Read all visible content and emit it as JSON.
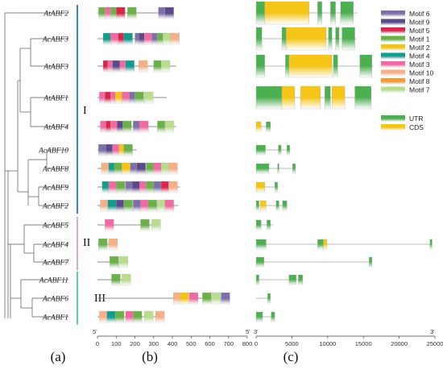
{
  "genes": [
    "AtABF2",
    "AcABF3",
    "AtABF3",
    "AtABF1",
    "AtABF4",
    "AcABF10",
    "AcABF8",
    "AcABF9",
    "AcABF2",
    "AcABF5",
    "AcABF4",
    "AcABF7",
    "AcABF11",
    "AcABF6",
    "AcABF1"
  ],
  "clades": [
    {
      "label": "I",
      "color": "#2f86c8",
      "from": 0,
      "to": 8
    },
    {
      "label": "II",
      "color": "#d9a6e3",
      "from": 9,
      "to": 11
    },
    {
      "label": "III",
      "color": "#5fcfa8",
      "from": 12,
      "to": 14
    }
  ],
  "panels": [
    "(a)",
    "(b)",
    "(c)"
  ],
  "motif_axis": {
    "min": 0,
    "max": 800,
    "ticks": [
      0,
      100,
      200,
      300,
      400,
      500,
      600,
      700,
      800
    ],
    "start_label": "5'",
    "end_label": "5'"
  },
  "gene_axis": {
    "min": 0,
    "max": 25000,
    "ticks": [
      0,
      5000,
      10000,
      15000,
      20000,
      25000
    ],
    "start_label": "3'",
    "end_label": "3'"
  },
  "motifs": [
    {
      "name": "Motif 6",
      "color": "#7d6fa8"
    },
    {
      "name": "Motif 9",
      "color": "#5b4a8a"
    },
    {
      "name": "Motif 5",
      "color": "#d8264b"
    },
    {
      "name": "Motif 1",
      "color": "#6bb04a"
    },
    {
      "name": "Motif 2",
      "color": "#f5c21b"
    },
    {
      "name": "Motif 4",
      "color": "#149b8c"
    },
    {
      "name": "Motif 3",
      "color": "#ef6aa0"
    },
    {
      "name": "Motif 10",
      "color": "#f5b08a"
    },
    {
      "name": "Motif 8",
      "color": "#f29a3a"
    },
    {
      "name": "Motif 7",
      "color": "#b9dd8e"
    }
  ],
  "structure_legend": [
    {
      "name": "UTR",
      "color": "#4caf50"
    },
    {
      "name": "CDS",
      "color": "#f5c518"
    }
  ],
  "motif_tracks": [
    {
      "length": 400,
      "motifs": [
        [
          6,
          3
        ],
        [
          40,
          6
        ],
        [
          70,
          3
        ],
        [
          100,
          2
        ],
        [
          160,
          3
        ],
        [
          325,
          0
        ],
        [
          360,
          1
        ]
      ]
    },
    {
      "length": 430,
      "motifs": [
        [
          30,
          5
        ],
        [
          70,
          6
        ],
        [
          110,
          2
        ],
        [
          140,
          5
        ],
        [
          200,
          0
        ],
        [
          220,
          1
        ],
        [
          250,
          6
        ],
        [
          290,
          0
        ],
        [
          320,
          3
        ],
        [
          350,
          9
        ],
        [
          390,
          7
        ]
      ]
    },
    {
      "length": 420,
      "motifs": [
        [
          30,
          2
        ],
        [
          55,
          6
        ],
        [
          80,
          1
        ],
        [
          120,
          6
        ],
        [
          150,
          5
        ],
        [
          220,
          7
        ],
        [
          300,
          3
        ],
        [
          340,
          9
        ]
      ]
    },
    {
      "length": 370,
      "motifs": [
        [
          10,
          6
        ],
        [
          40,
          2
        ],
        [
          70,
          6
        ],
        [
          95,
          4
        ],
        [
          130,
          6
        ],
        [
          170,
          0
        ],
        [
          200,
          3
        ],
        [
          250,
          9
        ]
      ]
    },
    {
      "length": 420,
      "motifs": [
        [
          15,
          6
        ],
        [
          45,
          2
        ],
        [
          70,
          6
        ],
        [
          105,
          1
        ],
        [
          135,
          3
        ],
        [
          190,
          0
        ],
        [
          225,
          6
        ],
        [
          320,
          3
        ],
        [
          360,
          9
        ]
      ]
    },
    {
      "length": 210,
      "motifs": [
        [
          5,
          0
        ],
        [
          45,
          1
        ],
        [
          80,
          6
        ],
        [
          115,
          4
        ],
        [
          140,
          3
        ]
      ]
    },
    {
      "length": 430,
      "motifs": [
        [
          20,
          7
        ],
        [
          60,
          5
        ],
        [
          90,
          3
        ],
        [
          130,
          4
        ],
        [
          175,
          0
        ],
        [
          210,
          1
        ],
        [
          260,
          3
        ],
        [
          300,
          6
        ],
        [
          340,
          9
        ],
        [
          380,
          7
        ]
      ]
    },
    {
      "length": 440,
      "motifs": [
        [
          25,
          5
        ],
        [
          60,
          6
        ],
        [
          100,
          3
        ],
        [
          150,
          0
        ],
        [
          185,
          1
        ],
        [
          225,
          6
        ],
        [
          260,
          3
        ],
        [
          300,
          0
        ],
        [
          340,
          2
        ],
        [
          380,
          7
        ]
      ]
    },
    {
      "length": 430,
      "motifs": [
        [
          15,
          7
        ],
        [
          55,
          5
        ],
        [
          100,
          1
        ],
        [
          140,
          3
        ],
        [
          190,
          0
        ],
        [
          230,
          6
        ],
        [
          270,
          3
        ],
        [
          320,
          9
        ],
        [
          360,
          6
        ]
      ]
    },
    {
      "length": 320,
      "motifs": [
        [
          40,
          6
        ],
        [
          230,
          3
        ],
        [
          290,
          9
        ]
      ]
    },
    {
      "length": 100,
      "motifs": [
        [
          5,
          3
        ],
        [
          60,
          7
        ]
      ]
    },
    {
      "length": 165,
      "motifs": [
        [
          65,
          3
        ],
        [
          115,
          9
        ]
      ]
    },
    {
      "length": 170,
      "motifs": [
        [
          75,
          3
        ],
        [
          130,
          9
        ]
      ]
    },
    {
      "length": 700,
      "motifs": [
        [
          405,
          7
        ],
        [
          440,
          4
        ],
        [
          490,
          6
        ],
        [
          560,
          3
        ],
        [
          610,
          9
        ],
        [
          660,
          0
        ]
      ]
    },
    {
      "length": 345,
      "motifs": [
        [
          10,
          7
        ],
        [
          50,
          5
        ],
        [
          95,
          3
        ],
        [
          150,
          6
        ],
        [
          190,
          3
        ],
        [
          250,
          9
        ],
        [
          310,
          7
        ]
      ]
    }
  ],
  "gene_structures": [
    {
      "length": 14200,
      "segments": [
        [
          "utr",
          0,
          1200
        ],
        [
          "cds",
          1200,
          7400
        ],
        [
          "utr",
          8600,
          9200
        ],
        [
          "utr",
          10400,
          11100
        ],
        [
          "utr",
          11800,
          13600
        ]
      ]
    },
    {
      "length": 14000,
      "segments": [
        [
          "utr",
          0,
          800
        ],
        [
          "utr",
          3600,
          4200
        ],
        [
          "cds",
          4200,
          9800
        ],
        [
          "utr",
          10100,
          10600
        ],
        [
          "utr",
          11100,
          11600
        ],
        [
          "utr",
          12000,
          13800
        ]
      ]
    },
    {
      "length": 16400,
      "segments": [
        [
          "utr",
          0,
          1200
        ],
        [
          "utr",
          4100,
          4600
        ],
        [
          "cds",
          4600,
          10600
        ],
        [
          "utr",
          10800,
          11400
        ],
        [
          "utr",
          14500,
          16200
        ]
      ]
    },
    {
      "length": 16100,
      "segments": [
        [
          "utr",
          0,
          3600
        ],
        [
          "cds",
          3600,
          5400
        ],
        [
          "cds",
          6200,
          9000
        ],
        [
          "utr",
          9600,
          10400
        ],
        [
          "cds",
          10600,
          12400
        ],
        [
          "utr",
          13800,
          16100
        ]
      ]
    },
    {
      "length": 2100,
      "segments": [
        [
          "cds",
          0,
          700
        ],
        [
          "utr",
          1400,
          2000
        ]
      ]
    },
    {
      "length": 4800,
      "segments": [
        [
          "utr",
          0,
          1300
        ],
        [
          "utr",
          3100,
          3500
        ],
        [
          "utr",
          4300,
          4700
        ]
      ]
    },
    {
      "length": 5500,
      "segments": [
        [
          "utr",
          0,
          1800
        ],
        [
          "utr",
          3000,
          3200
        ],
        [
          "utr",
          5100,
          5500
        ]
      ]
    },
    {
      "length": 3000,
      "segments": [
        [
          "cds",
          0,
          1200
        ],
        [
          "utr",
          2600,
          3000
        ]
      ]
    },
    {
      "length": 4300,
      "segments": [
        [
          "utr",
          0,
          400
        ],
        [
          "cds",
          600,
          1400
        ],
        [
          "utr",
          2800,
          3200
        ],
        [
          "utr",
          3700,
          4300
        ]
      ]
    },
    {
      "length": 2400,
      "segments": [
        [
          "utr",
          0,
          700
        ],
        [
          "utr",
          1500,
          2000
        ]
      ]
    },
    {
      "length": 24600,
      "segments": [
        [
          "utr",
          0,
          1400
        ],
        [
          "utr",
          8600,
          9400
        ],
        [
          "cds",
          9400,
          9900
        ],
        [
          "utr",
          24300,
          24600
        ]
      ]
    },
    {
      "length": 16200,
      "segments": [
        [
          "utr",
          0,
          1100
        ],
        [
          "utr",
          15800,
          16200
        ]
      ]
    },
    {
      "length": 6500,
      "segments": [
        [
          "utr",
          0,
          400
        ],
        [
          "utr",
          4600,
          5600
        ],
        [
          "utr",
          5900,
          6500
        ]
      ]
    },
    {
      "length": 2000,
      "segments": [
        [
          "utr",
          1600,
          2000
        ]
      ]
    },
    {
      "length": 2600,
      "segments": [
        [
          "utr",
          0,
          900
        ],
        [
          "utr",
          2100,
          2600
        ]
      ]
    }
  ]
}
